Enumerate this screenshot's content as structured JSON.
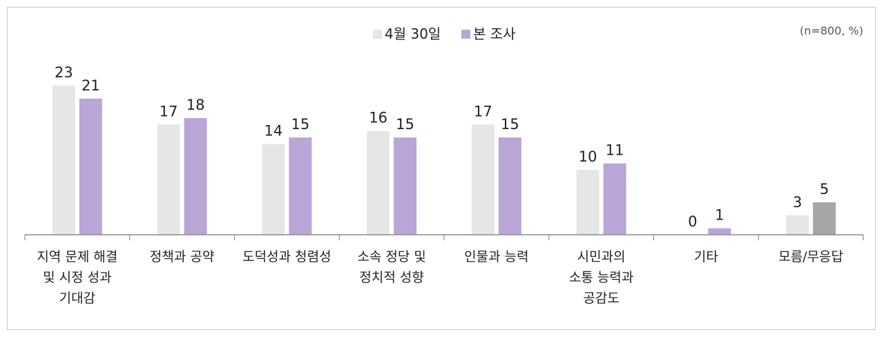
{
  "chart_data": {
    "type": "bar",
    "note": "(n=800, %)",
    "categories": [
      [
        "지역 문제 해결",
        "및 시정 성과",
        "기대감"
      ],
      [
        "정책과 공약"
      ],
      [
        "도덕성과 청렴성"
      ],
      [
        "소속 정당 및",
        "정치적 성향"
      ],
      [
        "인물과 능력"
      ],
      [
        "시민과의",
        "소통 능력과",
        "공감도"
      ],
      [
        "기타"
      ],
      [
        "모름/무응답"
      ]
    ],
    "series": [
      {
        "name": "4월 30일",
        "color": "#e6e6e6",
        "values": [
          23,
          17,
          14,
          16,
          17,
          10,
          0,
          3
        ]
      },
      {
        "name": "본 조사",
        "color": "#b9a6d6",
        "values": [
          21,
          18,
          15,
          15,
          15,
          11,
          1,
          5
        ]
      }
    ],
    "highlight": {
      "series": 1,
      "index": 7,
      "color": "#a6a6a6"
    },
    "ylim": [
      0,
      25
    ],
    "legend_position": "top-center",
    "grid": false
  }
}
